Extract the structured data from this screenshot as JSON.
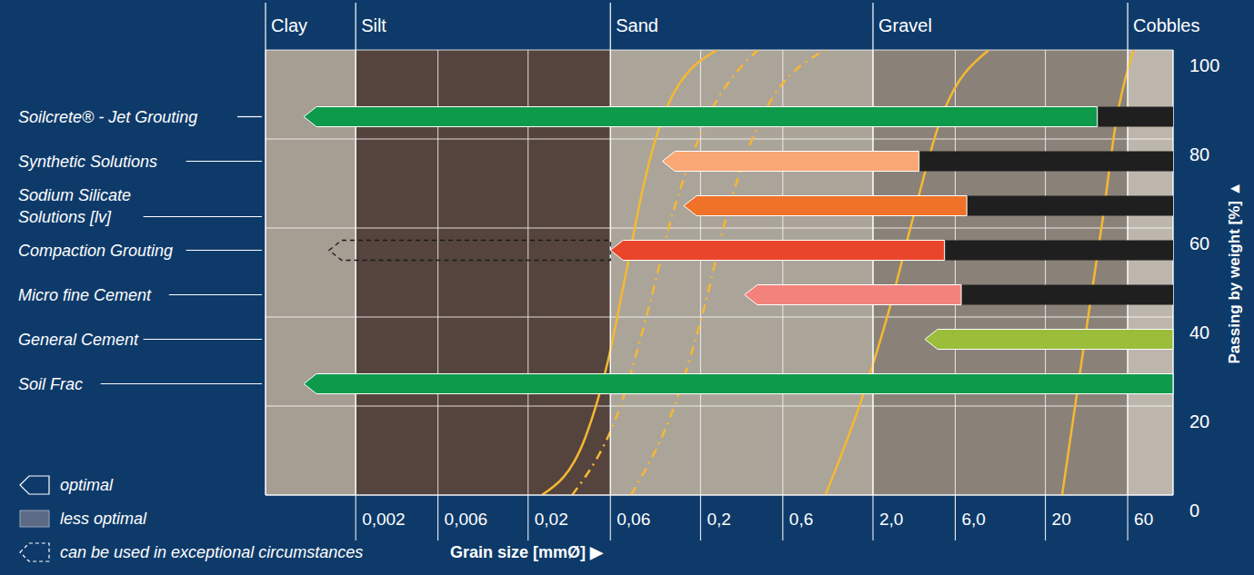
{
  "chart_data": {
    "type": "range_bar",
    "x_label": "Grain size [mmØ] ▶",
    "y_label": "Passing by weight [%] ▲",
    "log": "x",
    "grid": true,
    "xlim": [
      0.0006,
      110
    ],
    "xticks": [
      {
        "value": 0.002,
        "label": "0,002"
      },
      {
        "value": 0.006,
        "label": "0,006"
      },
      {
        "value": 0.02,
        "label": "0,02"
      },
      {
        "value": 0.06,
        "label": "0,06"
      },
      {
        "value": 0.2,
        "label": "0,2"
      },
      {
        "value": 0.6,
        "label": "0,6"
      },
      {
        "value": 2,
        "label": "2,0"
      },
      {
        "value": 6,
        "label": "6,0"
      },
      20,
      60
    ],
    "ylim": [
      0,
      100
    ],
    "yticks": [
      0,
      20,
      40,
      60,
      80,
      100
    ],
    "zones": [
      {
        "name": "Clay",
        "from": 0.0006
      },
      {
        "name": "Silt",
        "from": 0.002
      },
      {
        "name": "Sand",
        "from": 0.06
      },
      {
        "name": "Gravel",
        "from": 2
      },
      {
        "name": "Cobbles",
        "from": 60
      }
    ],
    "series": [
      {
        "name": "Soilcrete® - Jet Grouting",
        "y": 85,
        "optimal": [
          0.001,
          40
        ],
        "less_optimal": [
          40,
          110
        ],
        "color": "#0d9b4b"
      },
      {
        "name": "Synthetic Solutions",
        "y": 75,
        "optimal": [
          0.12,
          3.7
        ],
        "less_optimal": [
          3.7,
          110
        ],
        "color": "#f8a775"
      },
      {
        "name": "Sodium Silicate Solutions [lv]",
        "y": 65,
        "optimal": [
          0.16,
          7
        ],
        "less_optimal": [
          7,
          110
        ],
        "color": "#f07128"
      },
      {
        "name": "Compaction Grouting",
        "y": 55,
        "optimal": [
          0.06,
          5.2
        ],
        "less_optimal": [
          5.2,
          110
        ],
        "exceptional": [
          0.0014,
          0.06
        ],
        "color": "#e9452b"
      },
      {
        "name": "Micro fine Cement",
        "y": 45,
        "optimal": [
          0.36,
          6.5
        ],
        "less_optimal": [
          6.5,
          110
        ],
        "color": "#f3827c"
      },
      {
        "name": "General Cement",
        "y": 35,
        "optimal": [
          4,
          110
        ],
        "color": "#9bbd3a"
      },
      {
        "name": "Soil Frac",
        "y": 25,
        "optimal": [
          0.001,
          110
        ],
        "color": "#0d9b4b"
      }
    ],
    "curves": [
      {
        "color": "#f6b832",
        "line_style": "solid",
        "x": [
          0.024,
          0.043,
          0.058,
          0.074,
          0.094,
          0.127,
          0.25
        ],
        "y": [
          0,
          13,
          30,
          50,
          70,
          87,
          100
        ]
      },
      {
        "color": "#f6b832",
        "line_style": "dashed",
        "x": [
          0.036,
          0.07,
          0.1,
          0.135,
          0.21,
          0.43
        ],
        "y": [
          0,
          21,
          42,
          62,
          83,
          100
        ]
      },
      {
        "color": "#f6b832",
        "line_style": "dashed",
        "x": [
          0.079,
          0.144,
          0.21,
          0.28,
          0.43,
          1.06
        ],
        "y": [
          0,
          21,
          42,
          62,
          83,
          100
        ]
      },
      {
        "color": "#f6b832",
        "line_style": "solid",
        "x": [
          1.06,
          1.7,
          2.5,
          3.4,
          4.8,
          9.4
        ],
        "y": [
          0,
          21,
          42,
          62,
          83,
          100
        ]
      },
      {
        "color": "#f6b832",
        "line_style": "solid",
        "x": [
          25,
          30,
          36,
          43,
          51,
          65
        ],
        "y": [
          0,
          21,
          42,
          62,
          83,
          100
        ]
      }
    ],
    "key": [
      "optimal",
      "less optimal",
      "can be used in exceptional circumstances"
    ]
  }
}
